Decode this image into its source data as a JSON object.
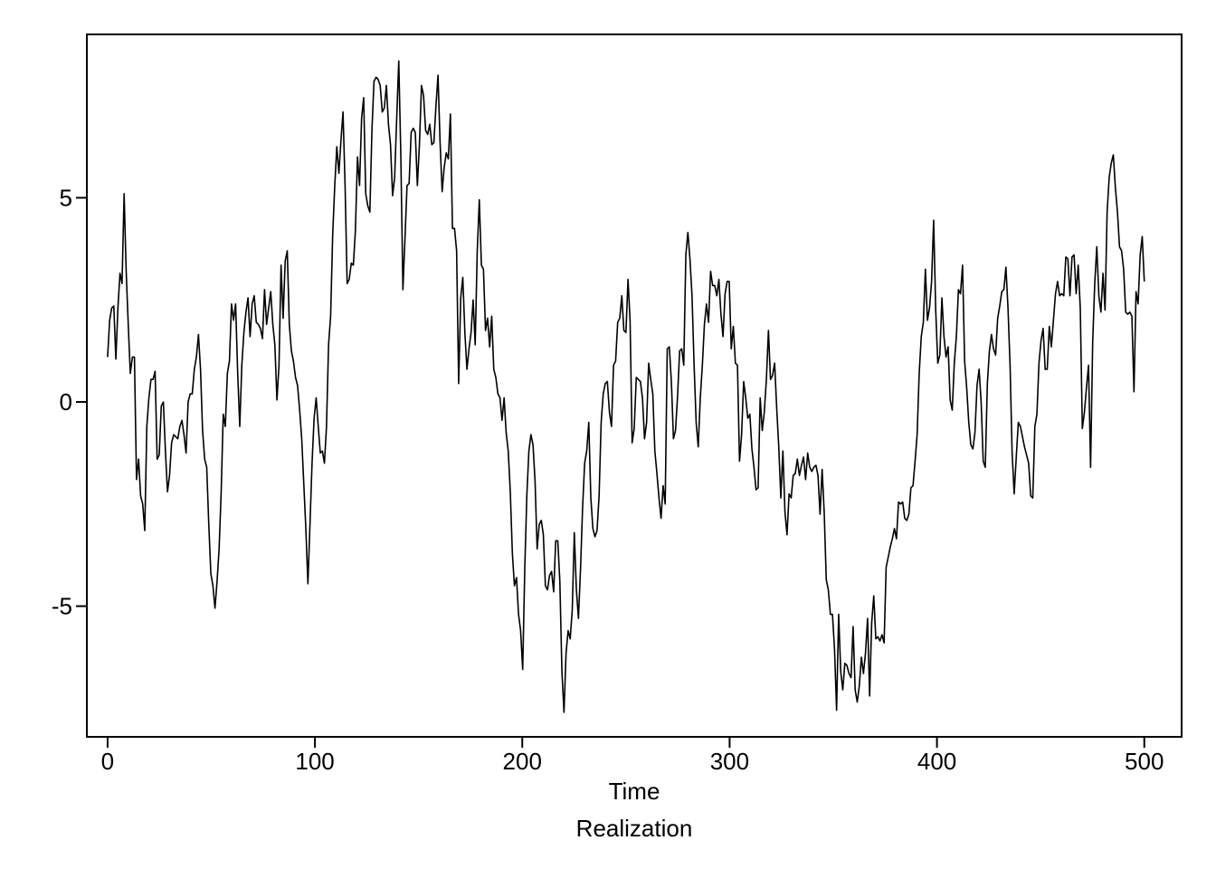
{
  "chart_data": {
    "type": "line",
    "title": "",
    "xlabel": "Time",
    "caption": "Realization",
    "ylabel": "",
    "xlim": [
      -10,
      518
    ],
    "ylim": [
      -8.2,
      9.0
    ],
    "xticks": [
      0,
      100,
      200,
      300,
      400,
      500
    ],
    "xtick_labels": [
      "0",
      "100",
      "200",
      "300",
      "400",
      "500"
    ],
    "yticks": [
      -5,
      0,
      5
    ],
    "ytick_labels": [
      "-5",
      "0",
      "5"
    ],
    "grid": false,
    "line_color": "#000000",
    "series": [
      {
        "values": [
          1.1,
          2.0,
          2.3,
          2.35,
          1.05,
          2.3,
          3.15,
          2.9,
          5.1,
          3.2,
          1.9,
          0.7,
          1.1,
          1.1,
          -1.9,
          -1.4,
          -2.3,
          -2.5,
          -3.15,
          -0.6,
          0.1,
          0.55,
          0.55,
          0.75,
          -1.4,
          -1.3,
          -0.1,
          0.0,
          -1.2,
          -2.2,
          -1.8,
          -1.0,
          -0.8,
          -0.85,
          -0.9,
          -0.6,
          -0.45,
          -0.8,
          -1.25,
          0.0,
          0.2,
          0.2,
          0.8,
          1.1,
          1.65,
          0.8,
          -0.7,
          -1.4,
          -1.6,
          -3.0,
          -4.2,
          -4.5,
          -5.05,
          -4.4,
          -3.6,
          -2.2,
          -0.3,
          -0.6,
          0.7,
          1.0,
          2.4,
          2.0,
          2.4,
          0.7,
          -0.6,
          0.9,
          1.7,
          2.2,
          2.55,
          1.6,
          2.4,
          2.6,
          1.95,
          1.9,
          1.8,
          1.55,
          2.75,
          1.9,
          2.3,
          2.7,
          1.9,
          1.4,
          0.05,
          0.9,
          3.35,
          2.05,
          3.45,
          3.7,
          1.9,
          1.25,
          1.0,
          0.6,
          0.4,
          -0.2,
          -0.9,
          -2.0,
          -3.1,
          -4.45,
          -3.0,
          -1.5,
          -0.4,
          0.1,
          -0.6,
          -1.25,
          -1.2,
          -1.5,
          -0.6,
          1.4,
          2.1,
          4.1,
          5.3,
          6.25,
          5.6,
          6.4,
          7.1,
          5.3,
          2.9,
          3.0,
          3.4,
          3.35,
          4.2,
          6.0,
          5.3,
          6.95,
          7.45,
          5.1,
          4.8,
          4.65,
          6.65,
          7.85,
          7.95,
          7.9,
          7.75,
          7.1,
          7.2,
          7.75,
          6.8,
          6.3,
          5.05,
          5.5,
          6.95,
          8.35,
          6.0,
          2.75,
          4.0,
          5.3,
          5.35,
          6.6,
          6.7,
          6.6,
          5.3,
          6.3,
          7.75,
          7.5,
          6.65,
          6.55,
          6.8,
          6.3,
          6.35,
          7.25,
          8.0,
          6.35,
          5.15,
          5.75,
          6.1,
          5.95,
          7.05,
          4.25,
          4.25,
          3.7,
          0.45,
          2.55,
          3.05,
          1.7,
          0.8,
          1.3,
          1.7,
          2.5,
          1.4,
          3.7,
          4.95,
          3.35,
          3.25,
          1.75,
          2.05,
          1.35,
          2.1,
          0.8,
          0.6,
          0.2,
          0.1,
          -0.45,
          0.1,
          -0.75,
          -1.2,
          -2.2,
          -3.7,
          -4.5,
          -4.3,
          -5.2,
          -5.6,
          -6.55,
          -4.1,
          -2.3,
          -1.2,
          -0.8,
          -1.05,
          -1.95,
          -3.6,
          -3.0,
          -2.9,
          -3.25,
          -4.5,
          -4.6,
          -4.25,
          -4.15,
          -4.65,
          -3.4,
          -3.4,
          -4.4,
          -6.6,
          -7.6,
          -6.15,
          -5.6,
          -5.8,
          -5.1,
          -3.2,
          -4.6,
          -5.3,
          -4.1,
          -2.6,
          -1.5,
          -1.2,
          -0.5,
          -2.35,
          -3.1,
          -3.3,
          -3.15,
          -2.3,
          -0.5,
          0.2,
          0.45,
          0.5,
          -0.25,
          -0.6,
          0.9,
          1.0,
          1.95,
          2.05,
          2.6,
          1.75,
          1.7,
          3.0,
          2.0,
          -1.0,
          -0.65,
          0.6,
          0.55,
          0.5,
          0.1,
          -0.9,
          -0.5,
          0.95,
          0.55,
          0.2,
          -1.2,
          -1.75,
          -2.35,
          -2.85,
          -2.05,
          -2.5,
          1.3,
          1.35,
          0.5,
          -0.9,
          -0.7,
          0.15,
          1.25,
          1.3,
          0.9,
          3.6,
          4.15,
          3.5,
          2.6,
          0.9,
          -0.5,
          -1.1,
          0.1,
          0.9,
          1.9,
          2.4,
          1.95,
          3.2,
          2.85,
          2.85,
          2.6,
          3.0,
          2.15,
          1.6,
          2.65,
          2.95,
          2.95,
          1.3,
          1.85,
          0.95,
          0.9,
          -1.45,
          -0.8,
          0.5,
          0.1,
          -0.4,
          -0.3,
          -1.15,
          -1.6,
          -2.15,
          -2.1,
          0.1,
          -0.7,
          -0.25,
          0.55,
          1.75,
          0.55,
          0.65,
          0.95,
          -0.15,
          -1.1,
          -2.35,
          -1.2,
          -2.7,
          -3.25,
          -2.25,
          -2.35,
          -1.8,
          -1.75,
          -1.4,
          -1.8,
          -1.55,
          -1.35,
          -1.9,
          -1.25,
          -1.6,
          -1.7,
          -1.6,
          -1.55,
          -1.8,
          -2.75,
          -1.65,
          -2.7,
          -4.35,
          -4.6,
          -5.2,
          -5.2,
          -6.05,
          -7.55,
          -5.2,
          -6.6,
          -7.05,
          -6.4,
          -6.45,
          -6.65,
          -6.75,
          -5.5,
          -7.05,
          -7.35,
          -6.95,
          -6.25,
          -6.65,
          -6.15,
          -5.3,
          -7.2,
          -5.4,
          -4.75,
          -5.8,
          -5.75,
          -5.85,
          -5.7,
          -5.9,
          -4.05,
          -3.8,
          -3.55,
          -3.35,
          -3.1,
          -3.35,
          -2.45,
          -2.5,
          -2.45,
          -2.85,
          -2.9,
          -2.75,
          -2.1,
          -2.05,
          -1.45,
          -0.8,
          0.7,
          1.6,
          1.95,
          3.25,
          2.0,
          2.3,
          2.95,
          4.45,
          2.25,
          0.95,
          1.15,
          2.55,
          1.6,
          1.1,
          1.35,
          0.05,
          -0.2,
          0.95,
          1.6,
          2.75,
          2.65,
          3.35,
          1.0,
          0.35,
          -0.5,
          -1.05,
          -1.15,
          -0.75,
          0.4,
          0.8,
          0.0,
          -1.45,
          -1.6,
          0.45,
          1.25,
          1.65,
          1.3,
          1.15,
          2.05,
          2.35,
          2.7,
          2.75,
          3.3,
          2.3,
          0.9,
          -1.25,
          -2.25,
          -1.35,
          -0.5,
          -0.6,
          -0.85,
          -1.1,
          -1.3,
          -1.5,
          -2.3,
          -2.35,
          -0.6,
          -0.3,
          0.95,
          1.5,
          1.8,
          0.8,
          0.8,
          1.85,
          1.35,
          2.0,
          2.65,
          2.95,
          2.6,
          2.65,
          2.6,
          3.55,
          3.5,
          2.6,
          3.55,
          3.6,
          2.65,
          3.35,
          2.3,
          -0.65,
          -0.25,
          0.35,
          0.9,
          -1.6,
          1.45,
          2.9,
          3.8,
          2.6,
          2.2,
          3.15,
          2.25,
          4.65,
          5.5,
          5.85,
          6.05,
          5.25,
          4.65,
          3.8,
          3.7,
          3.25,
          2.2,
          2.15,
          2.2,
          2.1,
          0.25,
          2.7,
          2.4,
          3.6,
          4.05,
          2.95
        ]
      }
    ]
  }
}
